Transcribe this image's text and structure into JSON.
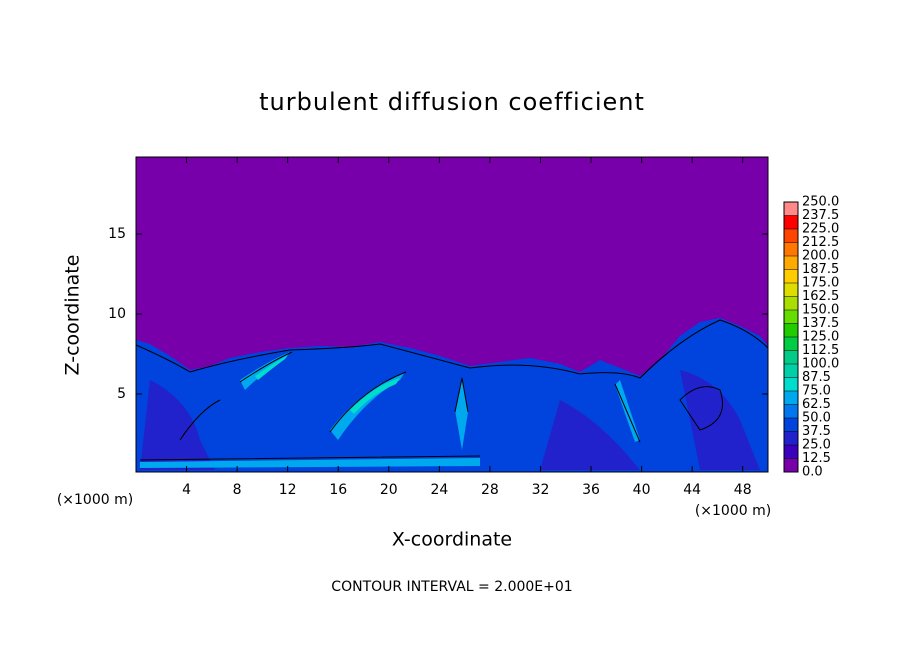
{
  "chart_data": {
    "type": "contour",
    "title": "turbulent diffusion coefficient",
    "x_label": "X-coordinate",
    "y_label": "Z-coordinate",
    "x_unit": "(×1000 m)",
    "y_unit": "(×1000 m)",
    "annotation": "CONTOUR INTERVAL = 2.000E+01",
    "xlim": [
      0,
      50
    ],
    "xticks": [
      4,
      8,
      12,
      16,
      20,
      24,
      28,
      32,
      36,
      40,
      44,
      48
    ],
    "ylim": [
      0,
      20
    ],
    "yticks": [
      5,
      10,
      15
    ],
    "colorbar": {
      "levels": [
        {
          "value": 0,
          "label": "0.0"
        },
        {
          "value": 12.5,
          "label": "12.5"
        },
        {
          "value": 25,
          "label": "25.0"
        },
        {
          "value": 37.5,
          "label": "37.5"
        },
        {
          "value": 50,
          "label": "50.0"
        },
        {
          "value": 62.5,
          "label": "62.5"
        },
        {
          "value": 75,
          "label": "75.0"
        },
        {
          "value": 87.5,
          "label": "87.5"
        },
        {
          "value": 100,
          "label": "100.0"
        },
        {
          "value": 112.5,
          "label": "112.5"
        },
        {
          "value": 125,
          "label": "125.0"
        },
        {
          "value": 137.5,
          "label": "137.5"
        },
        {
          "value": 150,
          "label": "150.0"
        },
        {
          "value": 162.5,
          "label": "162.5"
        },
        {
          "value": 175,
          "label": "175.0"
        },
        {
          "value": 187.5,
          "label": "187.5"
        },
        {
          "value": 200,
          "label": "200.0"
        },
        {
          "value": 212.5,
          "label": "212.5"
        },
        {
          "value": 225,
          "label": "225.0"
        },
        {
          "value": 237.5,
          "label": "237.5"
        },
        {
          "value": 250,
          "label": "250.0"
        }
      ],
      "colors": [
        "#7700aa",
        "#3a00bb",
        "#2222cc",
        "#0044dd",
        "#0077ee",
        "#00a8ee",
        "#00ddcc",
        "#00d0a8",
        "#00cc88",
        "#00cc44",
        "#22cc00",
        "#66dd00",
        "#aadd00",
        "#dddd00",
        "#ffcc00",
        "#ffaa00",
        "#ff7700",
        "#ff4400",
        "#ff0000",
        "#ff8888"
      ]
    }
  }
}
